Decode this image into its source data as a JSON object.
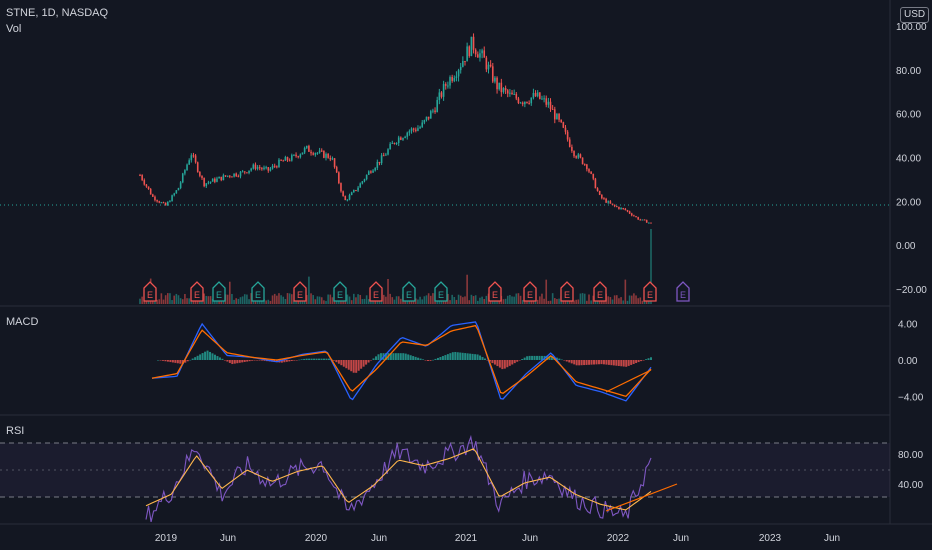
{
  "header": {
    "symbol_line": "STNE, 1D, NASDAQ",
    "vol_label": "Vol",
    "currency": "USD"
  },
  "price_axis": [
    "100.00",
    "80.00",
    "60.00",
    "40.00",
    "20.00",
    "0.00",
    "−20.00"
  ],
  "macd_axis": [
    "4.00",
    "0.00",
    "−4.00"
  ],
  "rsi_axis": [
    "80.00",
    "40.00"
  ],
  "time_axis": [
    "2019",
    "Jun",
    "2020",
    "Jun",
    "2021",
    "Jun",
    "2022",
    "Jun",
    "2023",
    "Jun"
  ],
  "earnings_markers": [
    {
      "label": "E",
      "kind": "miss"
    },
    {
      "label": "E",
      "kind": "miss"
    },
    {
      "label": "E",
      "kind": "beat"
    },
    {
      "label": "E",
      "kind": "beat"
    },
    {
      "label": "E",
      "kind": "miss"
    },
    {
      "label": "E",
      "kind": "beat"
    },
    {
      "label": "E",
      "kind": "miss"
    },
    {
      "label": "E",
      "kind": "beat"
    },
    {
      "label": "E",
      "kind": "beat"
    },
    {
      "label": "E",
      "kind": "miss"
    },
    {
      "label": "E",
      "kind": "miss"
    },
    {
      "label": "E",
      "kind": "miss"
    },
    {
      "label": "E",
      "kind": "miss"
    },
    {
      "label": "E",
      "kind": "miss"
    },
    {
      "label": "E",
      "kind": "upcoming"
    }
  ],
  "colors": {
    "up": "#26a69a",
    "down": "#ef5350",
    "macd": "#2962ff",
    "signal": "#ff6d00",
    "rsi": "#7e57c2",
    "rsi_ma": "#ffb74d",
    "upcoming": "#7e57c2",
    "bg": "#131722"
  },
  "chart_data": [
    {
      "type": "line",
      "title": "STNE, 1D, NASDAQ",
      "x": [
        "2018-11",
        "2018-12",
        "2019-01",
        "2019-02",
        "2019-03",
        "2019-04",
        "2019-05",
        "2019-06",
        "2019-07",
        "2019-08",
        "2019-09",
        "2019-10",
        "2019-11",
        "2019-12",
        "2020-01",
        "2020-02",
        "2020-03",
        "2020-04",
        "2020-05",
        "2020-06",
        "2020-07",
        "2020-08",
        "2020-09",
        "2020-10",
        "2020-11",
        "2020-12",
        "2021-01",
        "2021-02",
        "2021-03",
        "2021-04",
        "2021-05",
        "2021-06",
        "2021-07",
        "2021-08",
        "2021-09",
        "2021-10",
        "2021-11",
        "2021-12",
        "2022-01",
        "2022-02",
        "2022-03"
      ],
      "series": [
        {
          "values": [
            32,
            22,
            18,
            26,
            42,
            28,
            30,
            32,
            33,
            36,
            34,
            38,
            40,
            44,
            42,
            40,
            20,
            26,
            34,
            40,
            48,
            52,
            54,
            62,
            74,
            82,
            92,
            84,
            72,
            68,
            66,
            68,
            64,
            54,
            42,
            36,
            22,
            18,
            16,
            12,
            10
          ]
        }
      ],
      "ylim": [
        -25,
        105
      ]
    },
    {
      "type": "line",
      "title": "MACD",
      "x": [
        "2018-11",
        "2019-01",
        "2019-03",
        "2019-05",
        "2019-07",
        "2019-09",
        "2019-11",
        "2020-01",
        "2020-03",
        "2020-05",
        "2020-07",
        "2020-09",
        "2020-11",
        "2021-01",
        "2021-03",
        "2021-05",
        "2021-07",
        "2021-09",
        "2021-11",
        "2022-01",
        "2022-03"
      ],
      "series": [
        {
          "values": [
            -2,
            -1.8,
            4.0,
            0.5,
            0.3,
            -0.2,
            0.6,
            1.0,
            -4.5,
            -0.5,
            2.5,
            1.5,
            3.8,
            4.2,
            -4.5,
            -1.5,
            0.8,
            -2.8,
            -3.5,
            -4.5,
            -0.8
          ]
        },
        {
          "values": [
            -2,
            -1.5,
            3.3,
            0.8,
            0.3,
            0.0,
            0.5,
            0.9,
            -3.5,
            -1.0,
            2.0,
            1.6,
            3.2,
            3.8,
            -3.8,
            -1.8,
            0.5,
            -2.4,
            -3.2,
            -4.0,
            -1.0
          ]
        }
      ],
      "ylim": [
        -5.5,
        5.5
      ]
    },
    {
      "type": "line",
      "title": "RSI",
      "x": [
        "2018-11",
        "2019-01",
        "2019-03",
        "2019-05",
        "2019-07",
        "2019-09",
        "2019-11",
        "2020-01",
        "2020-03",
        "2020-05",
        "2020-07",
        "2020-09",
        "2020-11",
        "2021-01",
        "2021-03",
        "2021-05",
        "2021-07",
        "2021-09",
        "2021-11",
        "2022-01",
        "2022-03"
      ],
      "series": [
        {
          "values": [
            22,
            40,
            72,
            38,
            58,
            45,
            55,
            60,
            25,
            45,
            68,
            58,
            66,
            75,
            30,
            48,
            52,
            35,
            28,
            22,
            62
          ]
        },
        {
          "values": [
            30,
            38,
            65,
            42,
            55,
            47,
            54,
            58,
            32,
            44,
            62,
            58,
            63,
            70,
            36,
            46,
            50,
            38,
            31,
            27,
            40
          ]
        }
      ],
      "ylim": [
        20,
        90
      ]
    }
  ]
}
